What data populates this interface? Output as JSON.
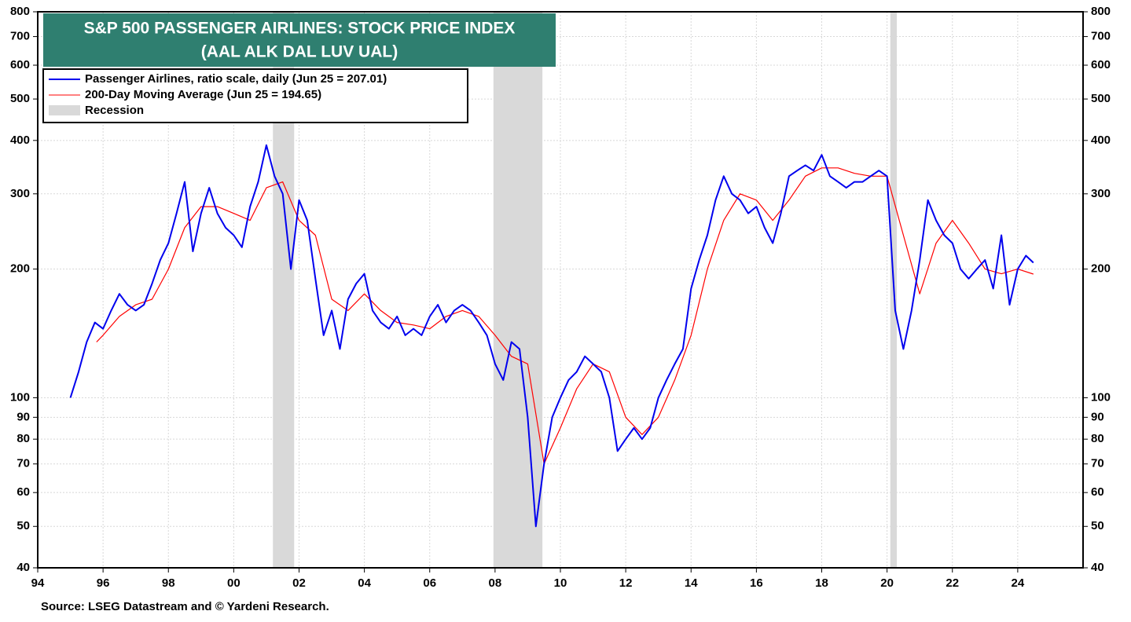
{
  "chart_data": {
    "type": "line",
    "title": "S&P 500 PASSENGER AIRLINES: STOCK PRICE INDEX",
    "subtitle": "(AAL ALK DAL LUV UAL)",
    "source": "Source: LSEG Datastream and © Yardeni Research.",
    "log_scale": true,
    "grid": true,
    "legend": "upper left",
    "xlim": [
      1994,
      2026
    ],
    "ylim": [
      40,
      800
    ],
    "xticks": [
      {
        "value": 1994,
        "label": "94"
      },
      {
        "value": 1996,
        "label": "96"
      },
      {
        "value": 1998,
        "label": "98"
      },
      {
        "value": 2000,
        "label": "00"
      },
      {
        "value": 2002,
        "label": "02"
      },
      {
        "value": 2004,
        "label": "04"
      },
      {
        "value": 2006,
        "label": "06"
      },
      {
        "value": 2008,
        "label": "08"
      },
      {
        "value": 2010,
        "label": "10"
      },
      {
        "value": 2012,
        "label": "12"
      },
      {
        "value": 2014,
        "label": "14"
      },
      {
        "value": 2016,
        "label": "16"
      },
      {
        "value": 2018,
        "label": "18"
      },
      {
        "value": 2020,
        "label": "20"
      },
      {
        "value": 2022,
        "label": "22"
      },
      {
        "value": 2024,
        "label": "24"
      }
    ],
    "yticks": [
      40,
      50,
      60,
      70,
      80,
      90,
      100,
      200,
      300,
      400,
      500,
      600,
      700,
      800
    ],
    "recessions": {
      "name": "Recession",
      "color": "#d9d9d9",
      "spans": [
        [
          2001.2,
          2001.85
        ],
        [
          2007.95,
          2009.45
        ],
        [
          2020.1,
          2020.3
        ]
      ]
    },
    "series": [
      {
        "name": "Passenger Airlines, ratio scale, daily (Jun 25 = 207.01)",
        "color": "#0000ee",
        "x": [
          1995.0,
          1995.25,
          1995.5,
          1995.75,
          1996.0,
          1996.25,
          1996.5,
          1996.75,
          1997.0,
          1997.25,
          1997.5,
          1997.75,
          1998.0,
          1998.25,
          1998.5,
          1998.75,
          1999.0,
          1999.25,
          1999.5,
          1999.75,
          2000.0,
          2000.25,
          2000.5,
          2000.75,
          2001.0,
          2001.25,
          2001.5,
          2001.75,
          2002.0,
          2002.25,
          2002.5,
          2002.75,
          2003.0,
          2003.25,
          2003.5,
          2003.75,
          2004.0,
          2004.25,
          2004.5,
          2004.75,
          2005.0,
          2005.25,
          2005.5,
          2005.75,
          2006.0,
          2006.25,
          2006.5,
          2006.75,
          2007.0,
          2007.25,
          2007.5,
          2007.75,
          2008.0,
          2008.25,
          2008.5,
          2008.75,
          2009.0,
          2009.25,
          2009.5,
          2009.75,
          2010.0,
          2010.25,
          2010.5,
          2010.75,
          2011.0,
          2011.25,
          2011.5,
          2011.75,
          2012.0,
          2012.25,
          2012.5,
          2012.75,
          2013.0,
          2013.25,
          2013.5,
          2013.75,
          2014.0,
          2014.25,
          2014.5,
          2014.75,
          2015.0,
          2015.25,
          2015.5,
          2015.75,
          2016.0,
          2016.25,
          2016.5,
          2016.75,
          2017.0,
          2017.25,
          2017.5,
          2017.75,
          2018.0,
          2018.25,
          2018.5,
          2018.75,
          2019.0,
          2019.25,
          2019.5,
          2019.75,
          2020.0,
          2020.25,
          2020.5,
          2020.75,
          2021.0,
          2021.25,
          2021.5,
          2021.75,
          2022.0,
          2022.25,
          2022.5,
          2022.75,
          2023.0,
          2023.25,
          2023.5,
          2023.75,
          2024.0,
          2024.25,
          2024.48
        ],
        "values": [
          100,
          115,
          135,
          150,
          145,
          160,
          175,
          165,
          160,
          165,
          185,
          210,
          230,
          270,
          320,
          220,
          270,
          310,
          270,
          250,
          240,
          225,
          280,
          320,
          390,
          330,
          300,
          200,
          290,
          260,
          190,
          140,
          160,
          130,
          170,
          185,
          195,
          160,
          150,
          145,
          155,
          140,
          145,
          140,
          155,
          165,
          150,
          160,
          165,
          160,
          150,
          140,
          120,
          110,
          135,
          130,
          90,
          50,
          70,
          90,
          100,
          110,
          115,
          125,
          120,
          115,
          100,
          75,
          80,
          85,
          80,
          85,
          100,
          110,
          120,
          130,
          180,
          210,
          240,
          290,
          330,
          300,
          290,
          270,
          280,
          250,
          230,
          270,
          330,
          340,
          350,
          340,
          370,
          330,
          320,
          310,
          320,
          320,
          330,
          340,
          330,
          160,
          130,
          160,
          210,
          290,
          260,
          240,
          230,
          200,
          190,
          200,
          210,
          180,
          240,
          165,
          200,
          215,
          207.01
        ]
      },
      {
        "name": "200-Day Moving Average (Jun 25 = 194.65)",
        "color": "#ff0000",
        "x": [
          1995.8,
          1996.0,
          1996.5,
          1997.0,
          1997.5,
          1998.0,
          1998.5,
          1999.0,
          1999.5,
          2000.0,
          2000.5,
          2001.0,
          2001.5,
          2002.0,
          2002.5,
          2003.0,
          2003.5,
          2004.0,
          2004.5,
          2005.0,
          2005.5,
          2006.0,
          2006.5,
          2007.0,
          2007.5,
          2008.0,
          2008.5,
          2009.0,
          2009.5,
          2010.0,
          2010.5,
          2011.0,
          2011.5,
          2012.0,
          2012.5,
          2013.0,
          2013.5,
          2014.0,
          2014.5,
          2015.0,
          2015.5,
          2016.0,
          2016.5,
          2017.0,
          2017.5,
          2018.0,
          2018.5,
          2019.0,
          2019.5,
          2020.0,
          2020.5,
          2021.0,
          2021.5,
          2022.0,
          2022.5,
          2023.0,
          2023.5,
          2024.0,
          2024.48
        ],
        "values": [
          135,
          140,
          155,
          165,
          170,
          200,
          250,
          280,
          280,
          270,
          260,
          310,
          320,
          260,
          240,
          170,
          160,
          175,
          160,
          150,
          148,
          145,
          155,
          160,
          155,
          140,
          125,
          120,
          70,
          85,
          105,
          120,
          115,
          90,
          82,
          90,
          110,
          140,
          200,
          260,
          300,
          290,
          260,
          290,
          330,
          345,
          345,
          335,
          330,
          330,
          240,
          175,
          230,
          260,
          230,
          200,
          195,
          200,
          194.65
        ]
      }
    ]
  }
}
